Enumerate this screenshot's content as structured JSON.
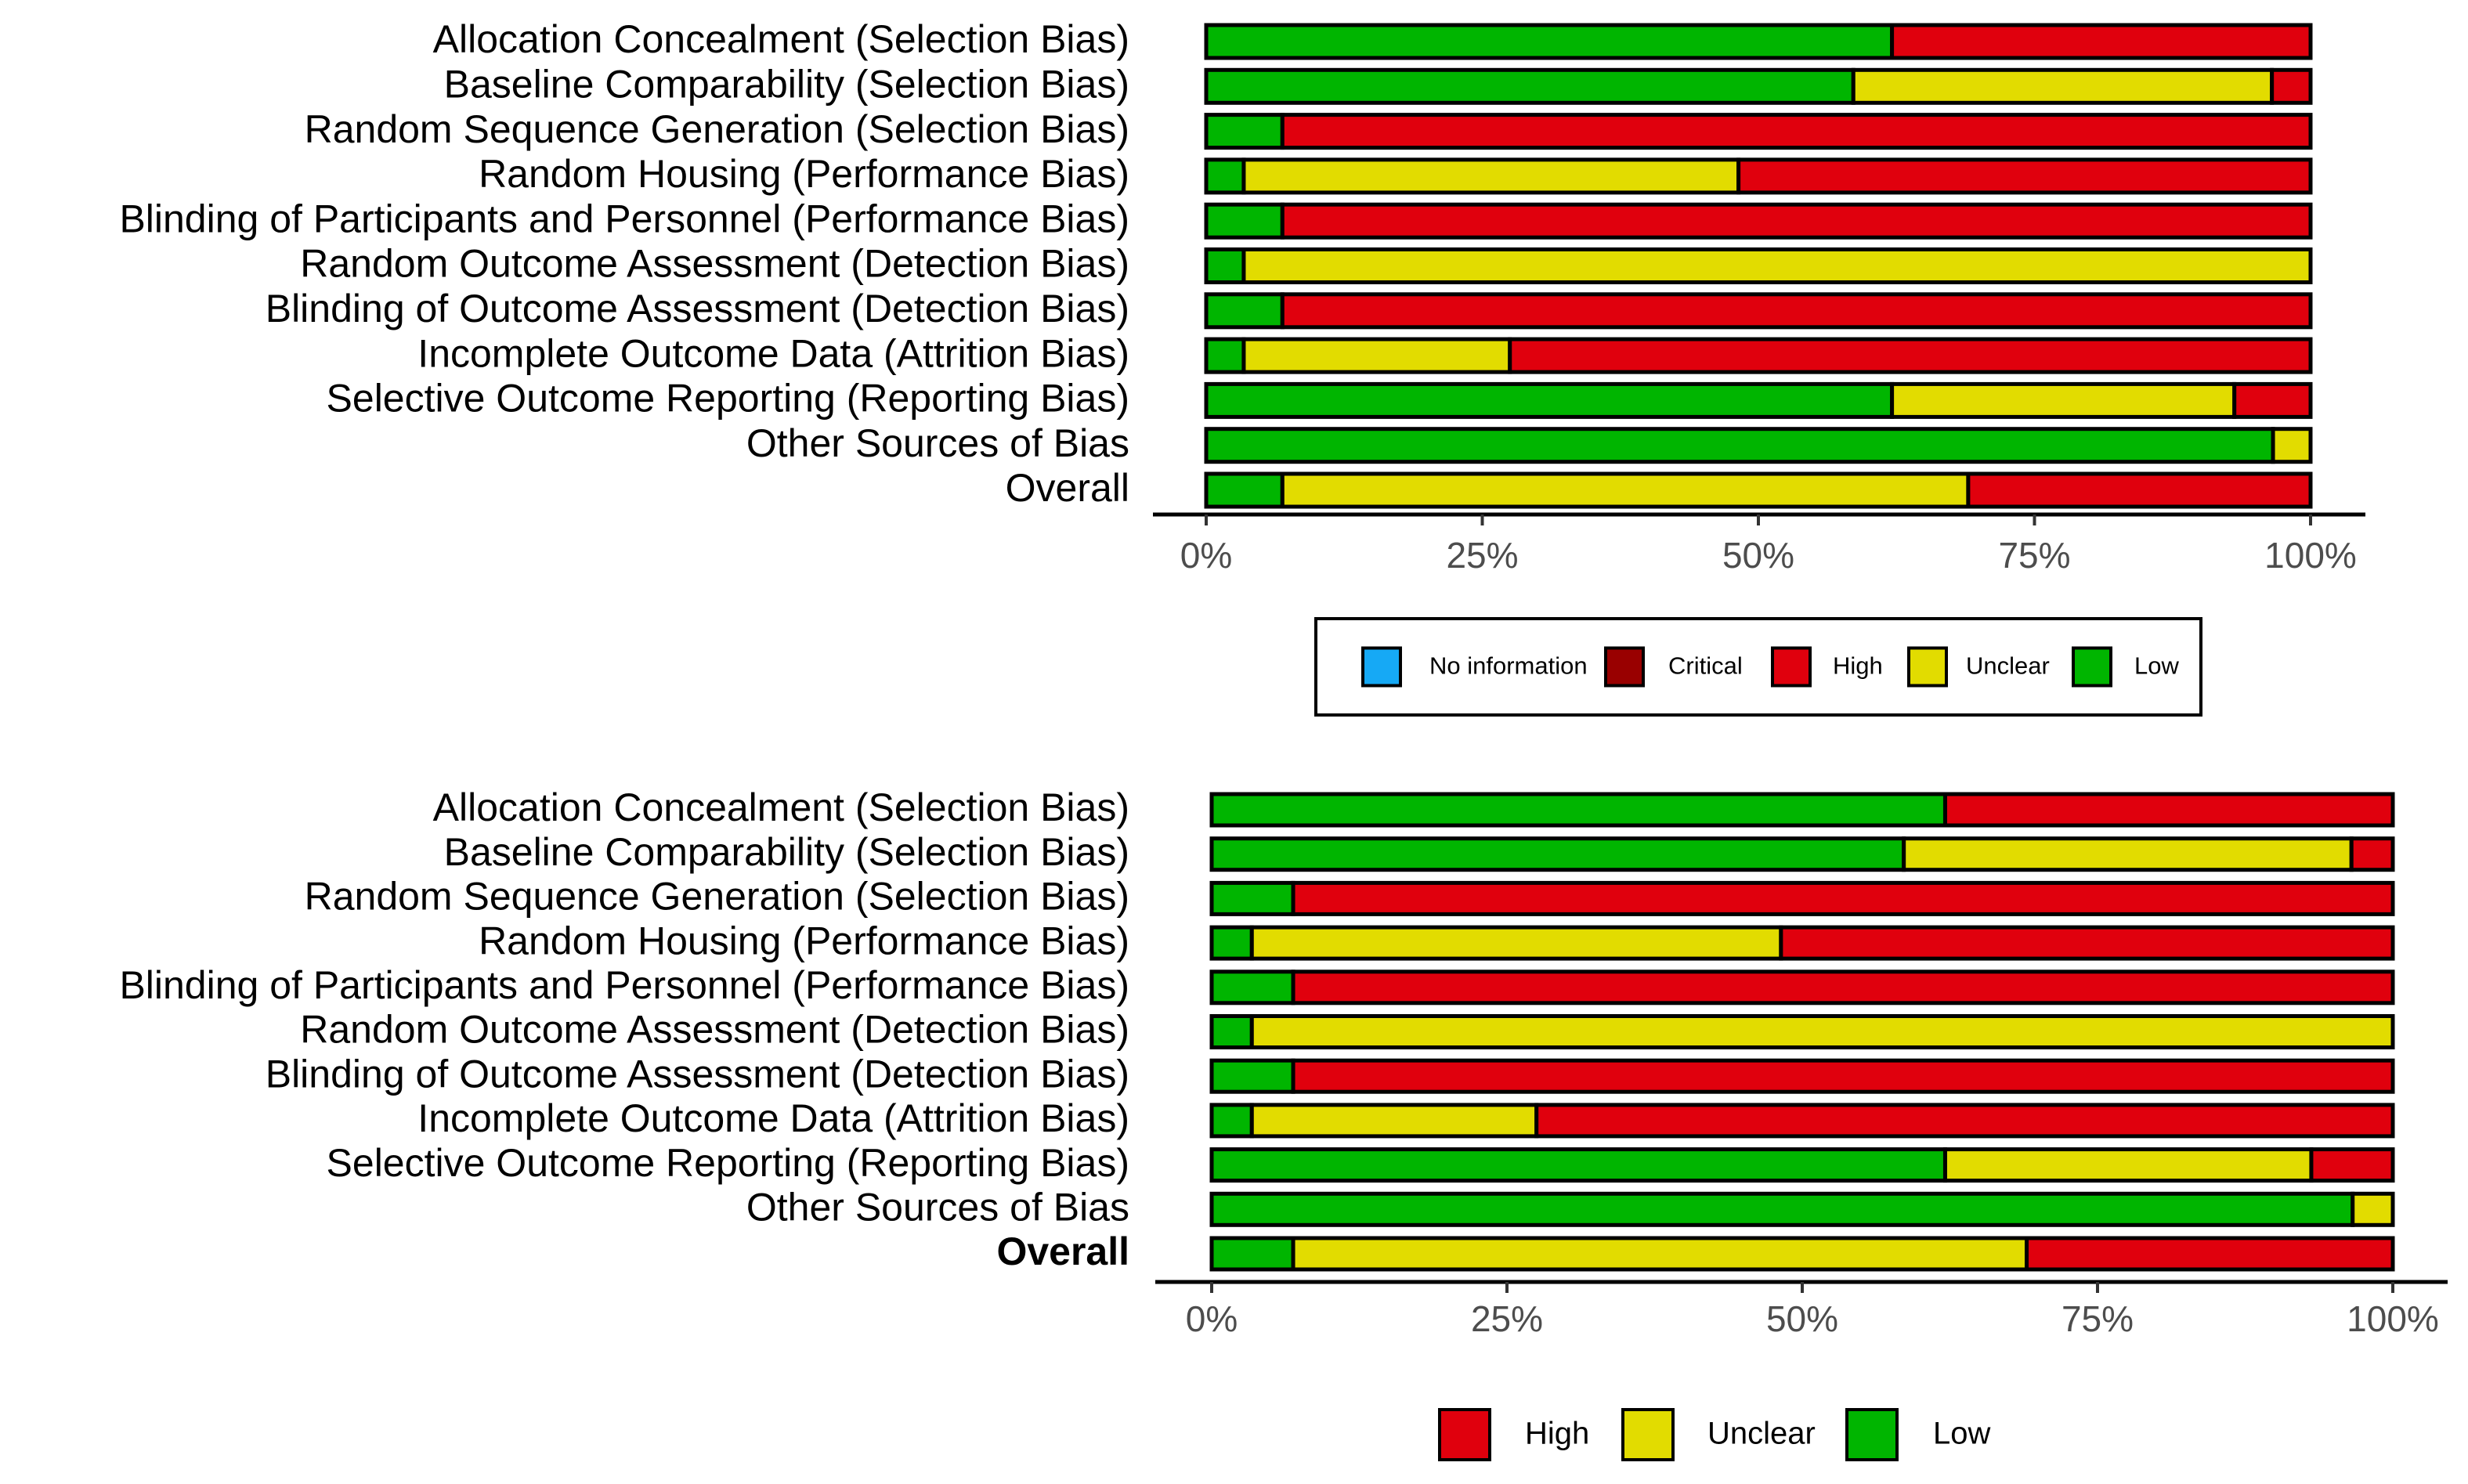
{
  "colors": {
    "No information": "#16a9f5",
    "Critical": "#990000",
    "High": "#e0000d",
    "Unclear": "#e2dc00",
    "Low": "#00b500"
  },
  "chart_data": [
    {
      "type": "bar",
      "orientation": "horizontal",
      "stacked": true,
      "categories": [
        "Allocation Concealment (Selection Bias)",
        "Baseline Comparability (Selection Bias)",
        "Random Sequence Generation (Selection Bias)",
        "Random Housing (Performance Bias)",
        "Blinding of Participants and Personnel (Performance Bias)",
        "Random Outcome Assessment (Detection Bias)",
        "Blinding of Outcome Assessment (Detection Bias)",
        "Incomplete Outcome Data (Attrition Bias)",
        "Selective Outcome Reporting (Reporting Bias)",
        "Other Sources of Bias",
        "Overall"
      ],
      "bold_categories": [],
      "series": [
        {
          "name": "Low",
          "values": [
            62.1,
            58.6,
            6.9,
            3.4,
            6.9,
            3.4,
            6.9,
            3.4,
            62.1,
            96.6,
            6.9
          ]
        },
        {
          "name": "Unclear",
          "values": [
            0,
            37.9,
            0,
            44.8,
            0,
            96.6,
            0,
            24.1,
            31.0,
            3.4,
            62.1
          ]
        },
        {
          "name": "High",
          "values": [
            37.9,
            3.5,
            93.1,
            51.8,
            93.1,
            0,
            93.1,
            72.5,
            6.9,
            0,
            31.0
          ]
        }
      ],
      "xlim": [
        0,
        100
      ],
      "x_ticks": [
        "0%",
        "25%",
        "50%",
        "75%",
        "100%"
      ],
      "legend": {
        "placement": "bottom",
        "boxed": true,
        "entries": [
          "No information",
          "Critical",
          "High",
          "Unclear",
          "Low"
        ]
      }
    },
    {
      "type": "bar",
      "orientation": "horizontal",
      "stacked": true,
      "categories": [
        "Allocation Concealment (Selection Bias)",
        "Baseline Comparability (Selection Bias)",
        "Random Sequence Generation (Selection Bias)",
        "Random Housing (Performance Bias)",
        "Blinding of Participants and Personnel (Performance Bias)",
        "Random Outcome Assessment (Detection Bias)",
        "Blinding of Outcome Assessment (Detection Bias)",
        "Incomplete Outcome Data (Attrition Bias)",
        "Selective Outcome Reporting (Reporting Bias)",
        "Other Sources of Bias",
        "Overall"
      ],
      "bold_categories": [
        "Overall"
      ],
      "series": [
        {
          "name": "Low",
          "values": [
            62.1,
            58.6,
            6.9,
            3.4,
            6.9,
            3.4,
            6.9,
            3.4,
            62.1,
            96.6,
            6.9
          ]
        },
        {
          "name": "Unclear",
          "values": [
            0,
            37.9,
            0,
            44.8,
            0,
            96.6,
            0,
            24.1,
            31.0,
            3.4,
            62.1
          ]
        },
        {
          "name": "High",
          "values": [
            37.9,
            3.5,
            93.1,
            51.8,
            93.1,
            0,
            93.1,
            72.5,
            6.9,
            0,
            31.0
          ]
        }
      ],
      "xlim": [
        0,
        100
      ],
      "x_ticks": [
        "0%",
        "25%",
        "50%",
        "75%",
        "100%"
      ],
      "legend": {
        "placement": "bottom",
        "boxed": false,
        "entries": [
          "High",
          "Unclear",
          "Low"
        ]
      }
    }
  ]
}
